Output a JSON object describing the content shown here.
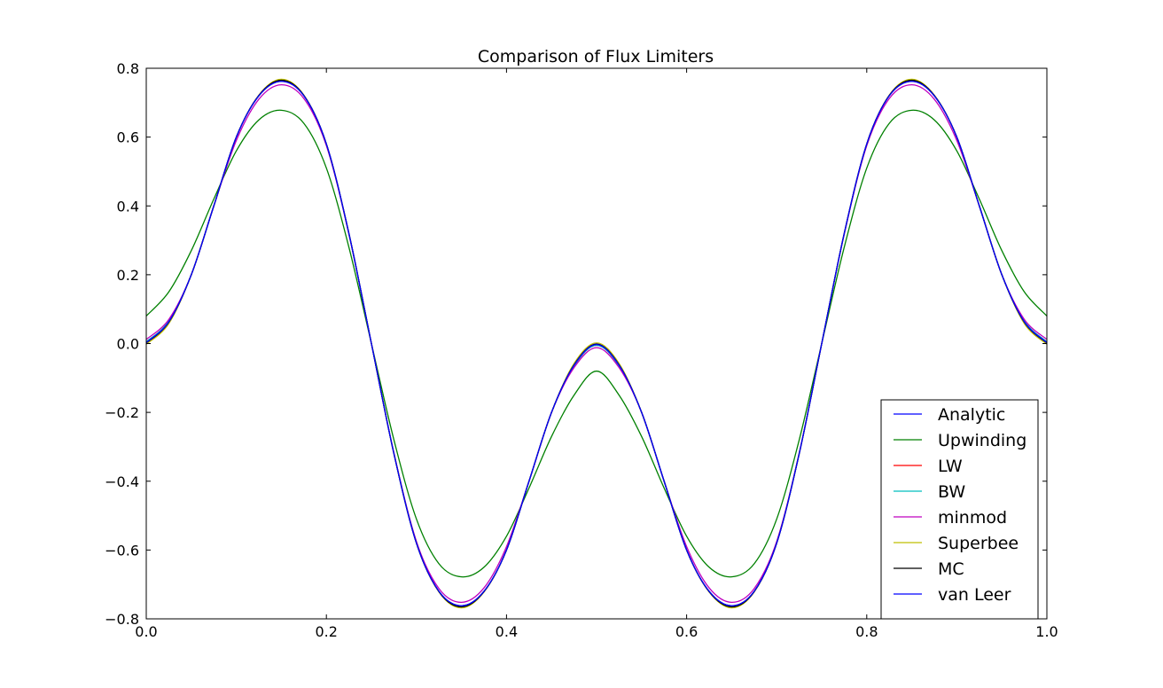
{
  "chart_data": {
    "type": "line",
    "title": "Comparison of Flux Limiters",
    "xlabel": "",
    "ylabel": "",
    "xlim": [
      0.0,
      1.0
    ],
    "ylim": [
      -0.8,
      0.8
    ],
    "grid": false,
    "legend_position": "lower-right",
    "x_ticks": [
      "0.0",
      "0.2",
      "0.4",
      "0.6",
      "0.8",
      "1.0"
    ],
    "y_ticks": [
      "−0.8",
      "−0.6",
      "−0.4",
      "−0.2",
      "0.0",
      "0.2",
      "0.4",
      "0.6",
      "0.8"
    ],
    "x": [
      0.0,
      0.025,
      0.05,
      0.075,
      0.1,
      0.125,
      0.15,
      0.175,
      0.2,
      0.225,
      0.25,
      0.275,
      0.3,
      0.325,
      0.35,
      0.375,
      0.4,
      0.425,
      0.45,
      0.475,
      0.5,
      0.525,
      0.55,
      0.575,
      0.6,
      0.625,
      0.65,
      0.675,
      0.7,
      0.725,
      0.75,
      0.775,
      0.8,
      0.825,
      0.85,
      0.875,
      0.9,
      0.925,
      0.95,
      0.975,
      1.0
    ],
    "series": [
      {
        "name": "Analytic",
        "color": "#0000ff",
        "values": [
          0.0,
          0.06,
          0.2,
          0.4,
          0.6,
          0.72,
          0.763,
          0.72,
          0.58,
          0.32,
          0.0,
          -0.32,
          -0.58,
          -0.72,
          -0.763,
          -0.72,
          -0.6,
          -0.4,
          -0.2,
          -0.06,
          0.0,
          -0.06,
          -0.2,
          -0.4,
          -0.6,
          -0.72,
          -0.763,
          -0.72,
          -0.58,
          -0.32,
          0.0,
          0.32,
          0.58,
          0.72,
          0.763,
          0.72,
          0.6,
          0.4,
          0.2,
          0.06,
          0.0
        ]
      },
      {
        "name": "Upwinding",
        "color": "#008000",
        "values": [
          0.08,
          0.15,
          0.27,
          0.42,
          0.56,
          0.65,
          0.678,
          0.64,
          0.51,
          0.28,
          0.0,
          -0.28,
          -0.51,
          -0.64,
          -0.678,
          -0.65,
          -0.56,
          -0.42,
          -0.27,
          -0.15,
          -0.08,
          -0.15,
          -0.27,
          -0.42,
          -0.56,
          -0.65,
          -0.678,
          -0.64,
          -0.51,
          -0.28,
          0.0,
          0.28,
          0.51,
          0.64,
          0.678,
          0.65,
          0.56,
          0.42,
          0.27,
          0.15,
          0.08
        ]
      },
      {
        "name": "LW",
        "color": "#ff0000",
        "values": [
          0.005,
          0.065,
          0.2,
          0.4,
          0.6,
          0.72,
          0.762,
          0.72,
          0.58,
          0.32,
          0.0,
          -0.32,
          -0.58,
          -0.72,
          -0.762,
          -0.72,
          -0.6,
          -0.4,
          -0.2,
          -0.065,
          -0.005,
          -0.065,
          -0.2,
          -0.4,
          -0.6,
          -0.72,
          -0.762,
          -0.72,
          -0.58,
          -0.32,
          0.0,
          0.32,
          0.58,
          0.72,
          0.762,
          0.72,
          0.6,
          0.4,
          0.2,
          0.065,
          0.005
        ]
      },
      {
        "name": "BW",
        "color": "#00bfbf",
        "values": [
          0.005,
          0.065,
          0.2,
          0.4,
          0.6,
          0.72,
          0.762,
          0.72,
          0.58,
          0.32,
          0.0,
          -0.32,
          -0.58,
          -0.72,
          -0.762,
          -0.72,
          -0.6,
          -0.4,
          -0.2,
          -0.065,
          -0.005,
          -0.065,
          -0.2,
          -0.4,
          -0.6,
          -0.72,
          -0.762,
          -0.72,
          -0.58,
          -0.32,
          0.0,
          0.32,
          0.58,
          0.72,
          0.762,
          0.72,
          0.6,
          0.4,
          0.2,
          0.065,
          0.005
        ]
      },
      {
        "name": "minmod",
        "color": "#bf00bf",
        "values": [
          0.012,
          0.07,
          0.2,
          0.4,
          0.59,
          0.71,
          0.752,
          0.712,
          0.575,
          0.318,
          0.0,
          -0.318,
          -0.575,
          -0.712,
          -0.752,
          -0.71,
          -0.59,
          -0.4,
          -0.2,
          -0.07,
          -0.012,
          -0.07,
          -0.2,
          -0.4,
          -0.59,
          -0.71,
          -0.752,
          -0.712,
          -0.575,
          -0.318,
          0.0,
          0.318,
          0.575,
          0.712,
          0.752,
          0.71,
          0.59,
          0.4,
          0.2,
          0.07,
          0.012
        ]
      },
      {
        "name": "Superbee",
        "color": "#bfbf00",
        "values": [
          -0.002,
          0.058,
          0.2,
          0.4,
          0.6,
          0.722,
          0.768,
          0.722,
          0.58,
          0.32,
          0.0,
          -0.32,
          -0.58,
          -0.722,
          -0.768,
          -0.722,
          -0.6,
          -0.4,
          -0.2,
          -0.058,
          0.002,
          -0.058,
          -0.2,
          -0.4,
          -0.6,
          -0.722,
          -0.768,
          -0.722,
          -0.58,
          -0.32,
          0.0,
          0.32,
          0.58,
          0.722,
          0.768,
          0.722,
          0.6,
          0.4,
          0.2,
          0.058,
          -0.002
        ]
      },
      {
        "name": "MC",
        "color": "#000000",
        "values": [
          0.002,
          0.062,
          0.2,
          0.4,
          0.6,
          0.721,
          0.765,
          0.721,
          0.58,
          0.32,
          0.0,
          -0.32,
          -0.58,
          -0.721,
          -0.765,
          -0.721,
          -0.6,
          -0.4,
          -0.2,
          -0.062,
          -0.002,
          -0.062,
          -0.2,
          -0.4,
          -0.6,
          -0.721,
          -0.765,
          -0.721,
          -0.58,
          -0.32,
          0.0,
          0.32,
          0.58,
          0.721,
          0.765,
          0.721,
          0.6,
          0.4,
          0.2,
          0.062,
          0.002
        ]
      },
      {
        "name": "van Leer",
        "color": "#0000ff",
        "values": [
          0.003,
          0.063,
          0.2,
          0.4,
          0.6,
          0.72,
          0.762,
          0.72,
          0.58,
          0.32,
          0.0,
          -0.32,
          -0.58,
          -0.72,
          -0.762,
          -0.72,
          -0.6,
          -0.4,
          -0.2,
          -0.063,
          -0.003,
          -0.063,
          -0.2,
          -0.4,
          -0.6,
          -0.72,
          -0.762,
          -0.72,
          -0.58,
          -0.32,
          0.0,
          0.32,
          0.58,
          0.72,
          0.762,
          0.72,
          0.6,
          0.4,
          0.2,
          0.063,
          0.003
        ]
      }
    ]
  }
}
